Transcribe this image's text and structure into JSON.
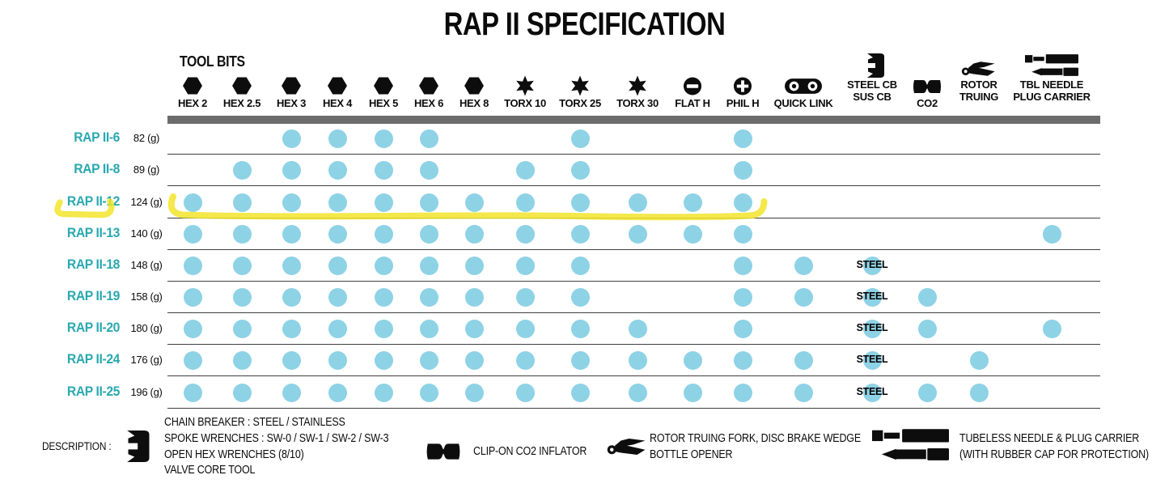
{
  "title": "RAP II SPECIFICATION",
  "colors": {
    "accent_teal": "#2aa9b0",
    "dot_blue": "#8ed2e6",
    "header_bar_gray": "#6c6c6c",
    "marker_yellow": "#f2e42c"
  },
  "table": {
    "tool_bits_label": "TOOL BITS",
    "columns": [
      {
        "id": "hex2",
        "icon": "hex-bit",
        "label_lines": [
          "HEX 2"
        ]
      },
      {
        "id": "hex2_5",
        "icon": "hex-bit",
        "label_lines": [
          "HEX 2.5"
        ]
      },
      {
        "id": "hex3",
        "icon": "hex-bit",
        "label_lines": [
          "HEX 3"
        ]
      },
      {
        "id": "hex4",
        "icon": "hex-bit",
        "label_lines": [
          "HEX 4"
        ]
      },
      {
        "id": "hex5",
        "icon": "hex-bit",
        "label_lines": [
          "HEX 5"
        ]
      },
      {
        "id": "hex6",
        "icon": "hex-bit",
        "label_lines": [
          "HEX 6"
        ]
      },
      {
        "id": "hex8",
        "icon": "hex-bit",
        "label_lines": [
          "HEX 8"
        ]
      },
      {
        "id": "torx10",
        "icon": "torx-bit",
        "label_lines": [
          "TORX 10"
        ]
      },
      {
        "id": "torx25",
        "icon": "torx-bit",
        "label_lines": [
          "TORX 25"
        ]
      },
      {
        "id": "torx30",
        "icon": "torx-bit",
        "label_lines": [
          "TORX 30"
        ]
      },
      {
        "id": "flath",
        "icon": "flat-head",
        "label_lines": [
          "FLAT H"
        ]
      },
      {
        "id": "philh",
        "icon": "phillips-head",
        "label_lines": [
          "PHIL H"
        ]
      },
      {
        "id": "quicklink",
        "icon": "quick-link",
        "label_lines": [
          "QUICK LINK"
        ]
      },
      {
        "id": "steelcb",
        "icon": "chain-breaker",
        "label_lines": [
          "STEEL CB",
          "SUS CB"
        ]
      },
      {
        "id": "co2",
        "icon": "co2-inflator",
        "label_lines": [
          "CO2"
        ]
      },
      {
        "id": "rotor",
        "icon": "rotor-truing",
        "label_lines": [
          "ROTOR",
          "TRUING"
        ]
      },
      {
        "id": "tbl",
        "icon": "tbl-carrier",
        "label_lines": [
          "TBL NEEDLE",
          "PLUG CARRIER"
        ]
      }
    ],
    "rows": [
      {
        "model": "RAP II-6",
        "weight": "82 (g)",
        "bits": [
          "hex3",
          "hex4",
          "hex5",
          "hex6",
          "torx25",
          "philh"
        ]
      },
      {
        "model": "RAP II-8",
        "weight": "89 (g)",
        "bits": [
          "hex2_5",
          "hex3",
          "hex4",
          "hex5",
          "hex6",
          "torx10",
          "torx25",
          "philh"
        ]
      },
      {
        "model": "RAP II-12",
        "weight": "124 (g)",
        "bits": [
          "hex2",
          "hex2_5",
          "hex3",
          "hex4",
          "hex5",
          "hex6",
          "hex8",
          "torx10",
          "torx25",
          "torx30",
          "flath",
          "philh"
        ]
      },
      {
        "model": "RAP II-13",
        "weight": "140 (g)",
        "bits": [
          "hex2",
          "hex2_5",
          "hex3",
          "hex4",
          "hex5",
          "hex6",
          "hex8",
          "torx10",
          "torx25",
          "torx30",
          "flath",
          "philh",
          "tbl"
        ]
      },
      {
        "model": "RAP II-18",
        "weight": "148 (g)",
        "bits": [
          "hex2",
          "hex2_5",
          "hex3",
          "hex4",
          "hex5",
          "hex6",
          "hex8",
          "torx10",
          "torx25",
          "philh",
          "quicklink",
          "steelcb"
        ],
        "note": {
          "col": "steelcb",
          "text": "STEEL"
        }
      },
      {
        "model": "RAP II-19",
        "weight": "158 (g)",
        "bits": [
          "hex2",
          "hex2_5",
          "hex3",
          "hex4",
          "hex5",
          "hex6",
          "hex8",
          "torx10",
          "torx25",
          "philh",
          "quicklink",
          "steelcb",
          "co2"
        ],
        "note": {
          "col": "steelcb",
          "text": "STEEL"
        }
      },
      {
        "model": "RAP II-20",
        "weight": "180 (g)",
        "bits": [
          "hex2",
          "hex2_5",
          "hex3",
          "hex4",
          "hex5",
          "hex6",
          "hex8",
          "torx10",
          "torx25",
          "torx30",
          "philh",
          "steelcb",
          "co2",
          "tbl"
        ],
        "note": {
          "col": "steelcb",
          "text": "STEEL"
        }
      },
      {
        "model": "RAP II-24",
        "weight": "176 (g)",
        "bits": [
          "hex2",
          "hex2_5",
          "hex3",
          "hex4",
          "hex5",
          "hex6",
          "hex8",
          "torx10",
          "torx25",
          "torx30",
          "flath",
          "philh",
          "quicklink",
          "steelcb",
          "rotor"
        ],
        "note": {
          "col": "steelcb",
          "text": "STEEL"
        }
      },
      {
        "model": "RAP II-25",
        "weight": "196 (g)",
        "bits": [
          "hex2",
          "hex2_5",
          "hex3",
          "hex4",
          "hex5",
          "hex6",
          "hex8",
          "torx10",
          "torx25",
          "torx30",
          "flath",
          "philh",
          "quicklink",
          "steelcb",
          "co2",
          "rotor"
        ],
        "note": {
          "col": "steelcb",
          "text": "STEEL"
        }
      }
    ]
  },
  "highlight": {
    "highlighted_model": "RAP II-12",
    "marker_color": "#f2e42c"
  },
  "description": {
    "label": "DESCRIPTION :",
    "items": [
      {
        "icon": "chain-breaker",
        "lines": [
          "CHAIN BREAKER : STEEL / STAINLESS",
          "SPOKE WRENCHES : SW-0 / SW-1 / SW-2 / SW-3",
          "OPEN HEX WRENCHES (8/10)",
          "VALVE CORE TOOL"
        ]
      },
      {
        "icon": "co2-inflator",
        "lines": [
          "CLIP-ON CO2 INFLATOR"
        ]
      },
      {
        "icon": "rotor-truing",
        "lines": [
          "ROTOR TRUING FORK, DISC BRAKE WEDGE",
          "BOTTLE OPENER"
        ]
      },
      {
        "icon": "tbl-carrier",
        "lines": [
          "TUBELESS NEEDLE & PLUG CARRIER",
          "(WITH RUBBER CAP FOR PROTECTION)"
        ]
      }
    ]
  }
}
